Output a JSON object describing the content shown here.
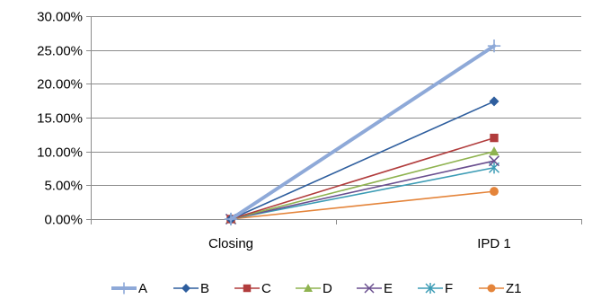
{
  "chart_data": {
    "type": "line",
    "categories": [
      "Closing",
      "IPD 1"
    ],
    "ylim": [
      0,
      30
    ],
    "y_unit": "%",
    "y_ticks": [
      0,
      5,
      10,
      15,
      20,
      25,
      30
    ],
    "y_tick_labels": [
      "0.00%",
      "5.00%",
      "10.00%",
      "15.00%",
      "20.00%",
      "25.00%",
      "30.00%"
    ],
    "grid": "horizontal",
    "legend_position": "bottom",
    "series": [
      {
        "name": "A",
        "values": [
          0,
          25.6
        ],
        "color": "#8EA9D8",
        "marker": "plus",
        "line_style": "thick"
      },
      {
        "name": "B",
        "values": [
          0,
          17.4
        ],
        "color": "#2E5E9E",
        "marker": "diamond"
      },
      {
        "name": "C",
        "values": [
          0,
          12.0
        ],
        "color": "#B13C3C",
        "marker": "square"
      },
      {
        "name": "D",
        "values": [
          0,
          10.0
        ],
        "color": "#8FB350",
        "marker": "triangle"
      },
      {
        "name": "E",
        "values": [
          0,
          8.6
        ],
        "color": "#6A4F8F",
        "marker": "x"
      },
      {
        "name": "F",
        "values": [
          0,
          7.6
        ],
        "color": "#3C9CB5",
        "marker": "asterisk"
      },
      {
        "name": "Z1",
        "values": [
          0,
          4.1
        ],
        "color": "#E4843A",
        "marker": "circle"
      }
    ]
  }
}
